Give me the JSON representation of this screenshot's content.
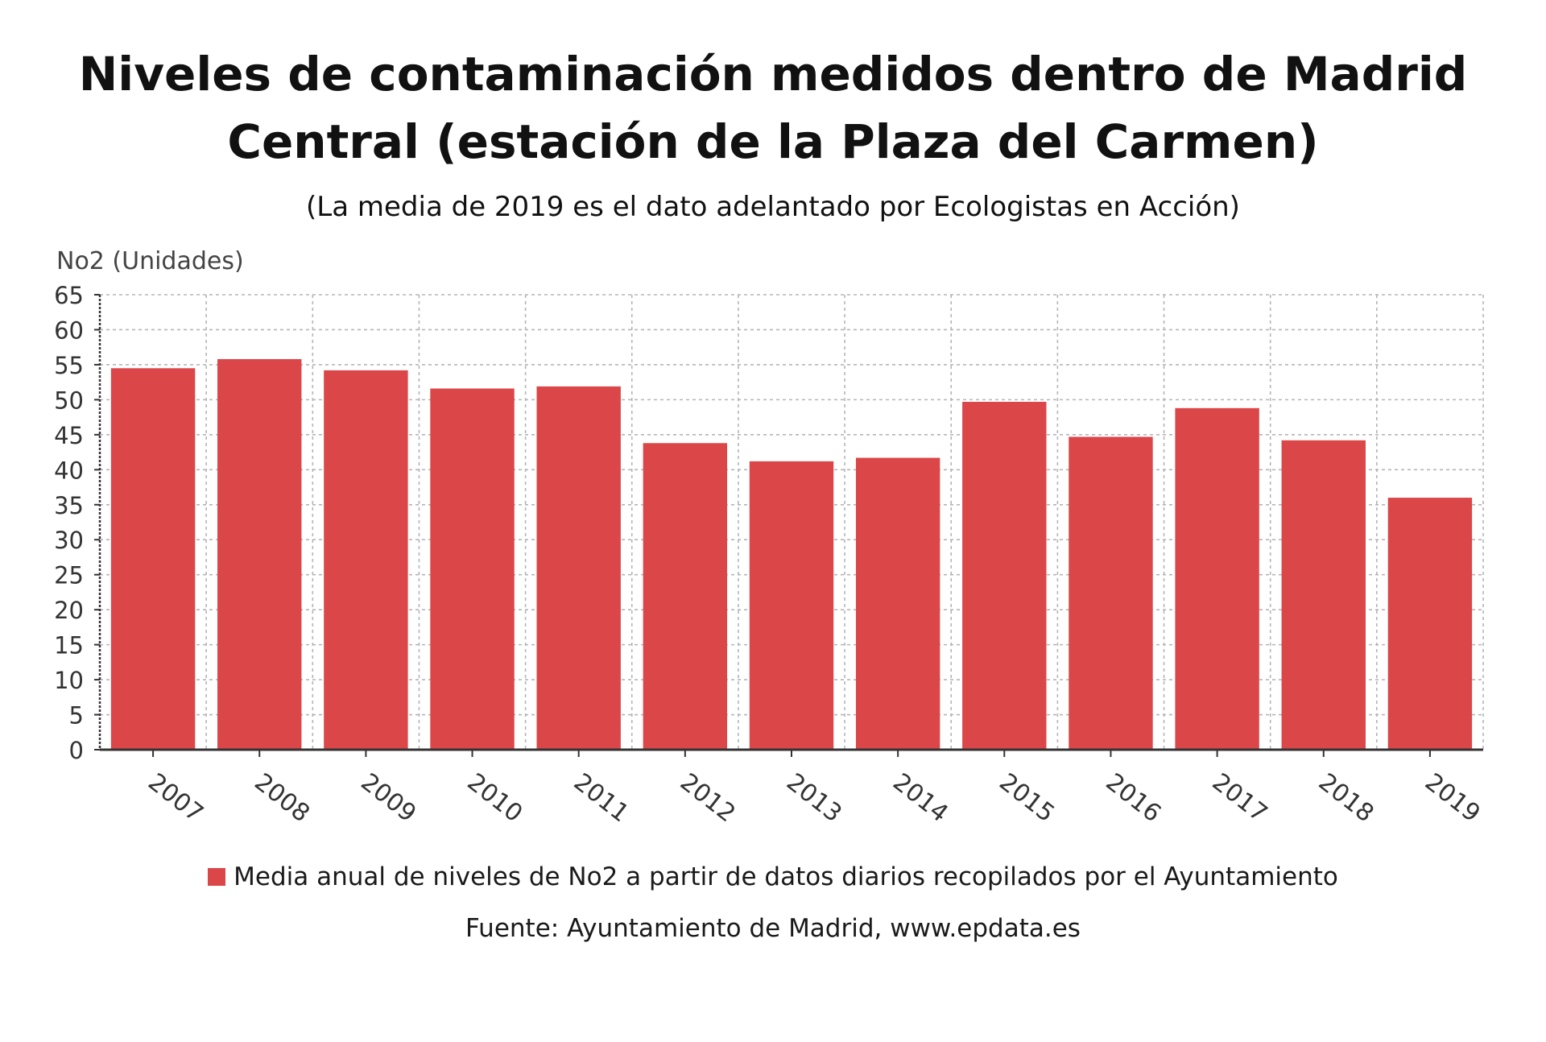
{
  "chart_data": {
    "type": "bar",
    "title_lines": [
      "Niveles de contaminación medidos dentro de Madrid",
      "Central (estación de la Plaza del Carmen)"
    ],
    "subtitle": "(La media de 2019 es el dato adelantado por Ecologistas en Acción)",
    "ylabel": "No2 (Unidades)",
    "xlabel": "",
    "ylim": [
      0,
      65
    ],
    "yticks": [
      0,
      5,
      10,
      15,
      20,
      25,
      30,
      35,
      40,
      45,
      50,
      55,
      60,
      65
    ],
    "grid": true,
    "categories": [
      "2007",
      "2008",
      "2009",
      "2010",
      "2011",
      "2012",
      "2013",
      "2014",
      "2015",
      "2016",
      "2017",
      "2018",
      "2019"
    ],
    "series": [
      {
        "name": "Media anual de niveles de No2 a partir de datos diarios recopilados por el Ayuntamiento",
        "color": "#db4649",
        "values": [
          54.5,
          55.8,
          54.2,
          51.6,
          51.9,
          43.8,
          41.2,
          41.7,
          49.7,
          44.7,
          48.8,
          44.2,
          36.0
        ]
      }
    ],
    "legend_position": "bottom",
    "source": "Fuente: Ayuntamiento de Madrid, www.epdata.es"
  },
  "colors": {
    "bar": "#db4649",
    "grid": "#b5b5b5",
    "axis": "#333333",
    "tick_text": "#333333"
  }
}
